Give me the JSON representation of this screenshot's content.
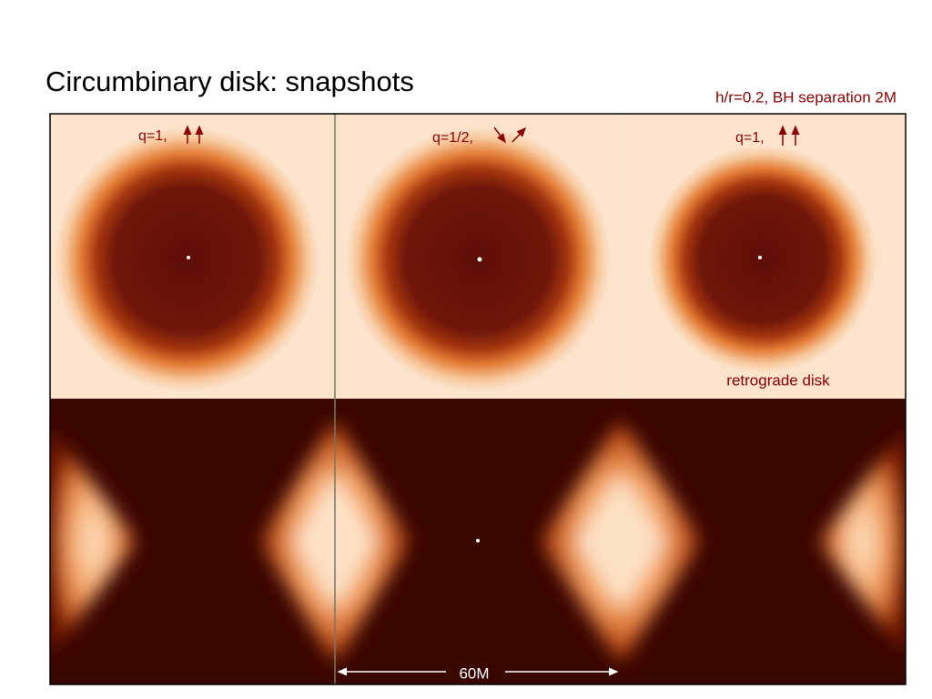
{
  "header": {
    "title": "Circumbinary disk: snapshots",
    "note": "h/r=0.2, BH separation 2M"
  },
  "panels": [
    {
      "label": "q=1,"
    },
    {
      "label": "q=1/2,"
    },
    {
      "label": "q=1,",
      "caption": "retrograde disk"
    }
  ],
  "scale": {
    "label": "60M"
  }
}
